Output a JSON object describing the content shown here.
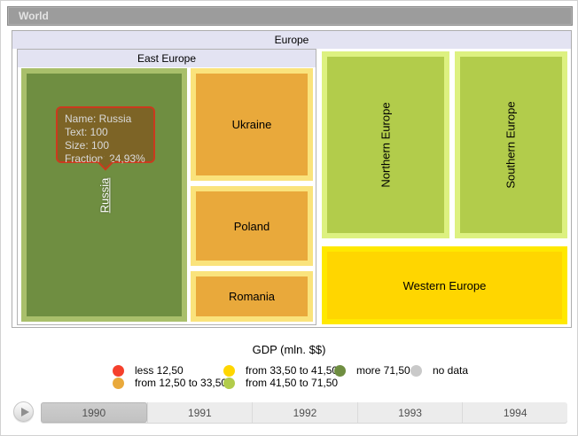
{
  "breadcrumb": {
    "label": "World"
  },
  "treemap": {
    "europe_header": "Europe",
    "east_europe_header": "East Europe",
    "tiles": [
      {
        "label": "Russia",
        "fill": "#6f8e41",
        "border": "#a9bf6b"
      },
      {
        "label": "Ukraine",
        "fill": "#e9a93b",
        "border": "#fae37c"
      },
      {
        "label": "Poland",
        "fill": "#e9a93b",
        "border": "#fae37c"
      },
      {
        "label": "Romania",
        "fill": "#e9a93b",
        "border": "#fae37c"
      },
      {
        "label": "Northern Europe",
        "fill": "#b2cc4b",
        "border": "#ddf180"
      },
      {
        "label": "Southern Europe",
        "fill": "#b2cc4b",
        "border": "#ddf180"
      },
      {
        "label": "Western Europe",
        "fill": "#ffd600",
        "border": "#ffe800"
      }
    ]
  },
  "tooltip": {
    "fill": "#7d6426",
    "border": "#cb3a1e",
    "lines": [
      "Name: Russia",
      "Text: 100",
      "Size: 100",
      "Fraction: 24,93%"
    ]
  },
  "legend": {
    "title": "GDP (mln. $$)",
    "items": [
      {
        "label": "less 12,50",
        "color": "#f5402c"
      },
      {
        "label": "from 12,50 to 33,50",
        "color": "#e9a93b"
      },
      {
        "label": "from 33,50 to 41,50",
        "color": "#ffd600"
      },
      {
        "label": "from 41,50 to 71,50",
        "color": "#b2cc4b"
      },
      {
        "label": "more 71,50",
        "color": "#6f8e41"
      },
      {
        "label": "no data",
        "color": "#c9c9c9"
      }
    ]
  },
  "timeline": {
    "years": [
      "1990",
      "1991",
      "1992",
      "1993",
      "1994"
    ],
    "selected_year": "1990",
    "play_icon": "play-triangle"
  },
  "chart_data": {
    "type": "treemap",
    "title": "GDP (mln. $$)",
    "root": "World",
    "groups": [
      {
        "name": "Europe",
        "children": [
          {
            "name": "East Europe",
            "children": [
              {
                "name": "Russia",
                "text": 100,
                "size": 100,
                "fraction_pct": 24.93,
                "bin": "more 71,50"
              },
              {
                "name": "Ukraine",
                "bin": "from 12,50 to 33,50"
              },
              {
                "name": "Poland",
                "bin": "from 12,50 to 33,50"
              },
              {
                "name": "Romania",
                "bin": "from 12,50 to 33,50"
              }
            ]
          },
          {
            "name": "Northern Europe",
            "bin": "from 41,50 to 71,50"
          },
          {
            "name": "Southern Europe",
            "bin": "from 41,50 to 71,50"
          },
          {
            "name": "Western Europe",
            "bin": "from 33,50 to 41,50"
          }
        ]
      }
    ],
    "legend_bins": [
      {
        "label": "less 12,50",
        "color": "#f5402c"
      },
      {
        "label": "from 12,50 to 33,50",
        "color": "#e9a93b"
      },
      {
        "label": "from 33,50 to 41,50",
        "color": "#ffd600"
      },
      {
        "label": "from 41,50 to 71,50",
        "color": "#b2cc4b"
      },
      {
        "label": "more 71,50",
        "color": "#6f8e41"
      },
      {
        "label": "no data",
        "color": "#c9c9c9"
      }
    ],
    "timeline_years": [
      "1990",
      "1991",
      "1992",
      "1993",
      "1994"
    ],
    "selected_year": "1990",
    "legend_position": "bottom",
    "tooltip_shown_for": "Russia"
  }
}
